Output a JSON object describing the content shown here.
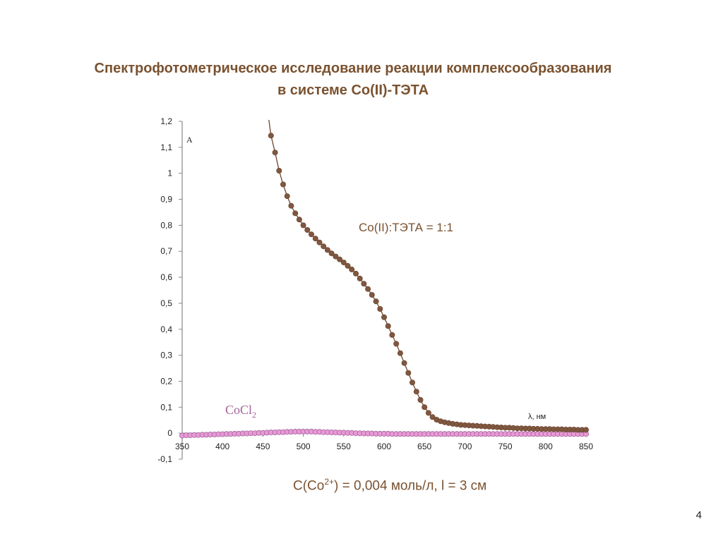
{
  "slide": {
    "title_line1": "Спектрофотометрическое исследование реакции комплексообразования",
    "title_line2": "в системе  Co(II)-ТЭТА",
    "note_prefix": "C(Co",
    "note_sup": "2+",
    "note_suffix": ") = 0,004 моль/л, l = 3 см",
    "page_number": "4"
  },
  "colors": {
    "title": "#7a5230",
    "complex_marker": "#7f5840",
    "complex_line": "#6e4631",
    "cocl2_marker": "#e89ad6",
    "cocl2_line": "#a3639a",
    "cocl2_label": "#a3639a"
  },
  "chart_data": {
    "type": "scatter",
    "title": "",
    "xlabel": "λ, нм",
    "ylabel": "A",
    "xlim": [
      350,
      850
    ],
    "ylim": [
      -0.1,
      1.2
    ],
    "x_ticks": [
      {
        "value": 350,
        "label": "350"
      },
      {
        "value": 400,
        "label": "400"
      },
      {
        "value": 450,
        "label": "450"
      },
      {
        "value": 500,
        "label": "500"
      },
      {
        "value": 550,
        "label": "550"
      },
      {
        "value": 600,
        "label": "600"
      },
      {
        "value": 650,
        "label": "650"
      },
      {
        "value": 700,
        "label": "700"
      },
      {
        "value": 750,
        "label": "750"
      },
      {
        "value": 800,
        "label": "800"
      },
      {
        "value": 850,
        "label": "850"
      }
    ],
    "y_ticks": [
      {
        "value": -0.1,
        "label": "-0,1"
      },
      {
        "value": 0,
        "label": "0"
      },
      {
        "value": 0.1,
        "label": "0,1"
      },
      {
        "value": 0.2,
        "label": "0,2"
      },
      {
        "value": 0.3,
        "label": "0,3"
      },
      {
        "value": 0.4,
        "label": "0,4"
      },
      {
        "value": 0.5,
        "label": "0,5"
      },
      {
        "value": 0.6,
        "label": "0,6"
      },
      {
        "value": 0.7,
        "label": "0,7"
      },
      {
        "value": 0.8,
        "label": "0,8"
      },
      {
        "value": 0.9,
        "label": "0,9"
      },
      {
        "value": 1,
        "label": "1"
      },
      {
        "value": 1.1,
        "label": "1,1"
      },
      {
        "value": 1.2,
        "label": "1,2"
      }
    ],
    "grid": false,
    "series": [
      {
        "name": "Co(II):ТЭТА = 1:1",
        "x": [
          460,
          465,
          470,
          475,
          480,
          485,
          490,
          495,
          500,
          505,
          510,
          515,
          520,
          525,
          530,
          535,
          540,
          545,
          550,
          555,
          560,
          565,
          570,
          575,
          580,
          585,
          590,
          595,
          600,
          605,
          610,
          615,
          620,
          625,
          630,
          635,
          640,
          645,
          650,
          655,
          660,
          665,
          670,
          675,
          680,
          685,
          690,
          695,
          700,
          705,
          710,
          715,
          720,
          725,
          730,
          735,
          740,
          745,
          750,
          755,
          760,
          765,
          770,
          775,
          780,
          785,
          790,
          795,
          800,
          805,
          810,
          815,
          820,
          825,
          830,
          835,
          840,
          845,
          850
        ],
        "y": [
          1.145,
          1.08,
          1.01,
          0.957,
          0.912,
          0.875,
          0.846,
          0.822,
          0.8,
          0.782,
          0.765,
          0.749,
          0.734,
          0.719,
          0.705,
          0.692,
          0.68,
          0.669,
          0.657,
          0.644,
          0.63,
          0.614,
          0.595,
          0.575,
          0.555,
          0.532,
          0.507,
          0.478,
          0.446,
          0.412,
          0.378,
          0.344,
          0.308,
          0.27,
          0.232,
          0.195,
          0.16,
          0.128,
          0.1,
          0.078,
          0.062,
          0.052,
          0.046,
          0.042,
          0.039,
          0.036,
          0.034,
          0.032,
          0.031,
          0.03,
          0.029,
          0.028,
          0.027,
          0.026,
          0.025,
          0.024,
          0.023,
          0.022,
          0.021,
          0.021,
          0.02,
          0.019,
          0.019,
          0.018,
          0.018,
          0.017,
          0.017,
          0.016,
          0.016,
          0.016,
          0.015,
          0.015,
          0.015,
          0.014,
          0.014,
          0.014,
          0.013,
          0.013,
          0.013
        ]
      },
      {
        "name": "CoCl2",
        "x": [
          350,
          355,
          360,
          365,
          370,
          375,
          380,
          385,
          390,
          395,
          400,
          405,
          410,
          415,
          420,
          425,
          430,
          435,
          440,
          445,
          450,
          455,
          460,
          465,
          470,
          475,
          480,
          485,
          490,
          495,
          500,
          505,
          510,
          515,
          520,
          525,
          530,
          535,
          540,
          545,
          550,
          555,
          560,
          565,
          570,
          575,
          580,
          585,
          590,
          595,
          600,
          605,
          610,
          615,
          620,
          625,
          630,
          635,
          640,
          645,
          650,
          655,
          660,
          665,
          670,
          675,
          680,
          685,
          690,
          695,
          700,
          705,
          710,
          715,
          720,
          725,
          730,
          735,
          740,
          745,
          750,
          755,
          760,
          765,
          770,
          775,
          780,
          785,
          790,
          795,
          800,
          805,
          810,
          815,
          820,
          825,
          830,
          835,
          840,
          845,
          850
        ],
        "y": [
          -0.009,
          -0.008,
          -0.008,
          -0.007,
          -0.007,
          -0.006,
          -0.006,
          -0.005,
          -0.005,
          -0.004,
          -0.004,
          -0.003,
          -0.003,
          -0.002,
          -0.002,
          -0.001,
          -0.001,
          0.0,
          0.0,
          0.001,
          0.001,
          0.002,
          0.003,
          0.003,
          0.004,
          0.004,
          0.005,
          0.005,
          0.006,
          0.006,
          0.006,
          0.006,
          0.006,
          0.005,
          0.005,
          0.004,
          0.004,
          0.003,
          0.003,
          0.002,
          0.002,
          0.001,
          0.001,
          0.0,
          0.0,
          -0.001,
          -0.001,
          -0.001,
          -0.002,
          -0.002,
          -0.002,
          -0.002,
          -0.003,
          -0.003,
          -0.003,
          -0.003,
          -0.003,
          -0.003,
          -0.003,
          -0.003,
          -0.003,
          -0.003,
          -0.003,
          -0.003,
          -0.003,
          -0.003,
          -0.003,
          -0.003,
          -0.003,
          -0.003,
          -0.003,
          -0.003,
          -0.003,
          -0.003,
          -0.003,
          -0.003,
          -0.003,
          -0.003,
          -0.003,
          -0.003,
          -0.003,
          -0.003,
          -0.003,
          -0.003,
          -0.003,
          -0.003,
          -0.003,
          -0.003,
          -0.003,
          -0.003,
          -0.003,
          -0.003,
          -0.003,
          -0.003,
          -0.003,
          -0.003,
          -0.003,
          -0.003,
          -0.003,
          -0.003,
          -0.003
        ]
      }
    ],
    "annotations": {
      "complex_label": "Co(II):ТЭТА = 1:1",
      "cocl2_label_main": "CoCl",
      "cocl2_label_sub": "2"
    }
  }
}
